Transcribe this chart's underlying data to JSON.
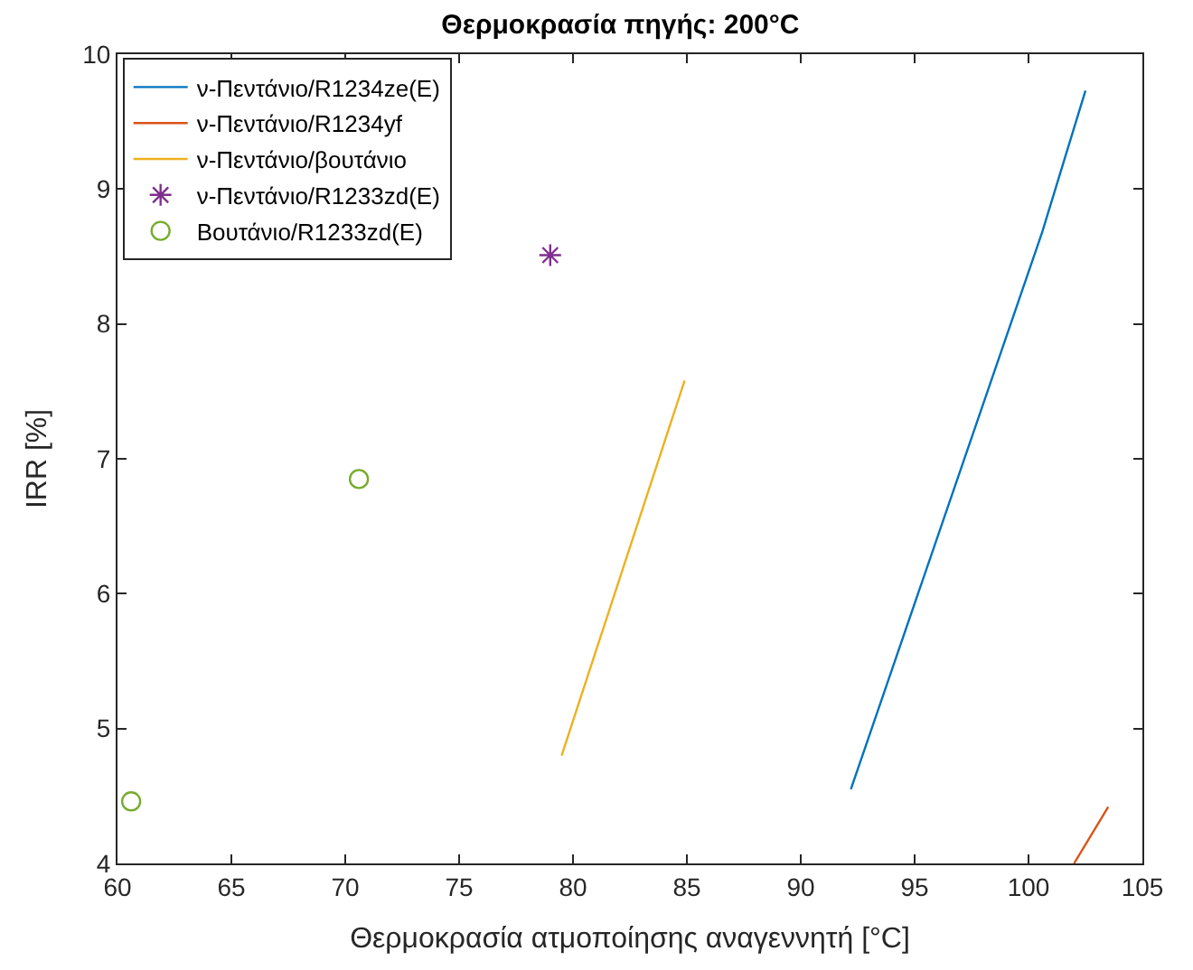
{
  "chart_data": {
    "type": "line",
    "title": "Θερμοκρασία πηγής: 200°C",
    "xlabel": "Θερμοκρασία ατμοποίησης αναγεννητή [°C]",
    "ylabel": "IRR [%]",
    "xlim": [
      60,
      105
    ],
    "xticks": [
      60,
      65,
      70,
      75,
      80,
      85,
      90,
      95,
      100,
      105
    ],
    "ylim": [
      4,
      10
    ],
    "yticks": [
      4,
      5,
      6,
      7,
      8,
      9,
      10
    ],
    "legend": "top left",
    "series": [
      {
        "name": "ν-Πεντάνιο/R1234ze(E)",
        "color": "#0072bd",
        "marker": "none",
        "x": [
          92.2,
          100.6,
          102.5
        ],
        "values": [
          4.55,
          8.68,
          9.73
        ]
      },
      {
        "name": "ν-Πεντάνιο/R1234yf",
        "color": "#d95319",
        "marker": "none",
        "x": [
          102.0,
          103.5
        ],
        "values": [
          4.0,
          4.42
        ]
      },
      {
        "name": "ν-Πεντάνιο/βουτάνιο",
        "color": "#edb120",
        "marker": "none",
        "x": [
          79.5,
          84.9
        ],
        "values": [
          4.8,
          7.58
        ]
      },
      {
        "name": "ν-Πεντάνιο/R1233zd(E)",
        "color": "#7e2f8e",
        "type": "scatter",
        "marker": "cross",
        "x": [
          79.0
        ],
        "values": [
          8.51
        ]
      },
      {
        "name": "Βουτάνιο/R1233zd(E)",
        "color": "#77ac30",
        "type": "scatter",
        "marker": "circle",
        "x": [
          60.6,
          70.6
        ],
        "values": [
          4.46,
          6.85
        ]
      }
    ]
  }
}
